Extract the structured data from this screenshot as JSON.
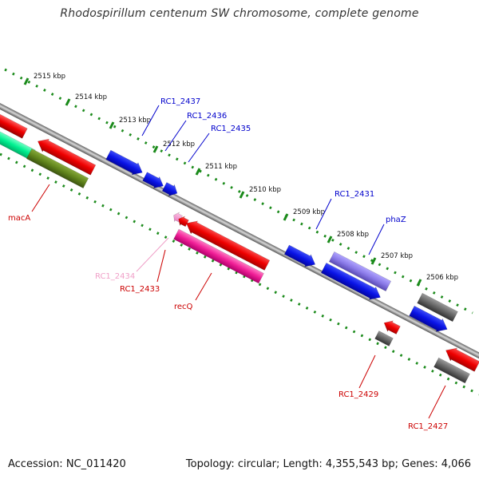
{
  "title": "Rhodospirillum centenum SW chromosome, complete genome",
  "footer": {
    "accession": "Accession: NC_011420",
    "stats": "Topology: circular; Length: 4,355,543 bp; Genes: 4,066"
  },
  "colors": {
    "tick_track": "#1a8a1a",
    "backbone": "#8c8c8c",
    "forward_label": "#0000cc",
    "reverse_label": "#cc0000",
    "faded_label": "#f0a0c8"
  },
  "scale": {
    "unit": "kbp",
    "marks": [
      "2515 kbp",
      "2514 kbp",
      "2513 kbp",
      "2512 kbp",
      "2511 kbp",
      "2510 kbp",
      "2509 kbp",
      "2508 kbp",
      "2507 kbp",
      "2506 kbp"
    ]
  },
  "gene_labels": [
    {
      "id": "macA",
      "text": "macA",
      "color": "#cc0000"
    },
    {
      "id": "rc1-2437",
      "text": "RC1_2437",
      "color": "#0000cc"
    },
    {
      "id": "rc1-2436",
      "text": "RC1_2436",
      "color": "#0000cc"
    },
    {
      "id": "rc1-2435",
      "text": "RC1_2435",
      "color": "#0000cc"
    },
    {
      "id": "rc1-2434",
      "text": "RC1_2434",
      "color": "#f0a0c8"
    },
    {
      "id": "rc1-2433",
      "text": "RC1_2433",
      "color": "#cc0000"
    },
    {
      "id": "recq",
      "text": "recQ",
      "color": "#cc0000"
    },
    {
      "id": "rc1-2431",
      "text": "RC1_2431",
      "color": "#0000cc"
    },
    {
      "id": "phaz",
      "text": "phaZ",
      "color": "#0000cc"
    },
    {
      "id": "rc1-2429",
      "text": "RC1_2429",
      "color": "#cc0000"
    },
    {
      "id": "rc1-2427",
      "text": "RC1_2427",
      "color": "#cc0000"
    }
  ]
}
